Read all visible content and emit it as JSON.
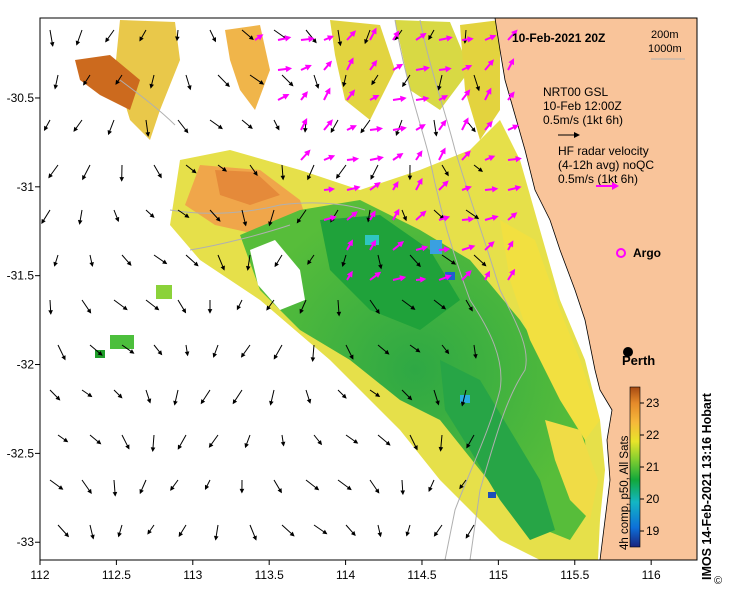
{
  "title": "10-Feb-2021 20Z",
  "contour_legend": [
    "200m",
    "1000m"
  ],
  "nrt_legend": {
    "line1": "NRT00 GSL",
    "line2": "10-Feb 12:00Z",
    "line3": "0.5m/s (1kt 6h)"
  },
  "hf_legend": {
    "line1": "HF radar velocity",
    "line2": "(4-12h avg) noQC",
    "line3": "0.5m/s (1kt 6h)"
  },
  "argo_label": "Argo",
  "city_label": "Perth",
  "colorbar": {
    "label": "4h comp, p50, All Sats",
    "ticks": [
      "19",
      "20",
      "21",
      "22",
      "23"
    ],
    "min": 18.5,
    "max": 23.5
  },
  "x_axis": {
    "ticks": [
      "112",
      "112.5",
      "113",
      "113.5",
      "114",
      "114.5",
      "115",
      "115.5",
      "116"
    ],
    "range": [
      112,
      116.3
    ]
  },
  "y_axis": {
    "ticks": [
      "-30.5",
      "-31",
      "-31.5",
      "-32",
      "-32.5",
      "-33"
    ],
    "range": [
      -33.1,
      -30.05
    ]
  },
  "copyright": "©",
  "credit": "IMOS 14-Feb-2021 13:16 Hobart",
  "colors": {
    "land": "#f9c49a",
    "radar_vectors": "#ff00ff",
    "model_vectors": "#000000",
    "contours": "#b0b0b0"
  }
}
